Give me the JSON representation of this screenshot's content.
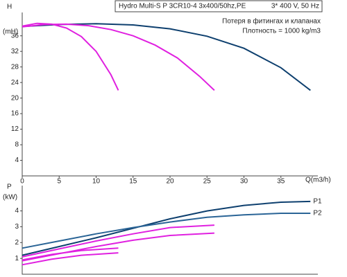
{
  "chart_data": [
    {
      "type": "line",
      "title": "Hydro Multi-S P 3CR10-4 3x400/50hz,PE",
      "subtitle": "3* 400 V, 50 Hz",
      "annotations": [
        "Потеря в фитингах и клапанах",
        "Плотность = 1000 kg/m3"
      ],
      "ylabel": "H",
      "yunit": "(mH)",
      "xlabel": "Q(m3/h)",
      "xlim": [
        0,
        40
      ],
      "xticks": [
        0,
        5,
        10,
        15,
        20,
        25,
        30,
        35
      ],
      "ylim": [
        0,
        42
      ],
      "yticks": [
        4,
        8,
        12,
        16,
        20,
        24,
        28,
        32,
        36
      ],
      "series": [
        {
          "color": "#0d3f6e",
          "x": [
            0,
            5,
            10,
            15,
            20,
            25,
            30,
            35,
            39
          ],
          "values": [
            38.4,
            38.9,
            39.1,
            38.8,
            37.8,
            35.9,
            32.8,
            27.8,
            22
          ]
        },
        {
          "color": "#e020e0",
          "x": [
            0,
            3,
            6,
            9,
            12,
            15,
            18,
            21,
            24,
            26
          ],
          "values": [
            38.3,
            38.9,
            39.0,
            38.6,
            37.6,
            36,
            33.6,
            30.3,
            25.6,
            22
          ]
        },
        {
          "color": "#e020e0",
          "x": [
            0,
            2,
            4,
            6,
            8,
            10,
            12,
            13
          ],
          "values": [
            38.5,
            39.2,
            39.0,
            38,
            35.8,
            32,
            26,
            22
          ]
        }
      ]
    },
    {
      "type": "line",
      "ylabel": "P",
      "yunit": "(kW)",
      "xlim": [
        0,
        40
      ],
      "ylim": [
        0,
        5.6
      ],
      "yticks": [
        1,
        2,
        3,
        4
      ],
      "series": [
        {
          "name": "P1",
          "color": "#0d3f6e",
          "x": [
            0,
            5,
            10,
            15,
            20,
            25,
            30,
            35,
            39
          ],
          "values": [
            1.2,
            1.75,
            2.3,
            2.9,
            3.5,
            4.0,
            4.35,
            4.55,
            4.6
          ]
        },
        {
          "name": "P2",
          "color": "#2a6496",
          "x": [
            0,
            5,
            10,
            15,
            20,
            25,
            30,
            35,
            39
          ],
          "values": [
            1.65,
            2.1,
            2.55,
            2.95,
            3.3,
            3.6,
            3.75,
            3.85,
            3.85
          ]
        },
        {
          "color": "#e020e0",
          "x": [
            0,
            5,
            10,
            15,
            20,
            26
          ],
          "values": [
            1.1,
            1.6,
            2.1,
            2.55,
            2.95,
            3.1
          ]
        },
        {
          "color": "#e020e0",
          "x": [
            0,
            5,
            10,
            15,
            20,
            26
          ],
          "values": [
            0.85,
            1.3,
            1.75,
            2.15,
            2.45,
            2.6
          ]
        },
        {
          "color": "#e020e0",
          "x": [
            0,
            4,
            8,
            13
          ],
          "values": [
            0.9,
            1.25,
            1.5,
            1.65
          ]
        },
        {
          "color": "#e020e0",
          "x": [
            0,
            4,
            8,
            13
          ],
          "values": [
            0.6,
            0.95,
            1.2,
            1.35
          ]
        }
      ]
    }
  ]
}
